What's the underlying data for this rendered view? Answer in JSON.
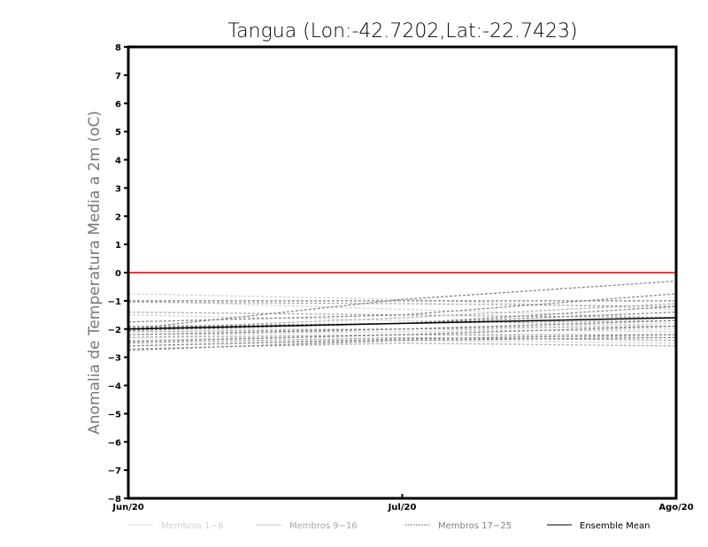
{
  "chart_data": {
    "type": "line",
    "title": "Tangua (Lon:-42.7202,Lat:-22.7423)",
    "ylabel": "Anomalia de Temperatura Media a 2m (oC)",
    "xlabel": "",
    "categories": [
      "Jun/20",
      "Jul/20",
      "Ago/20"
    ],
    "ylim": [
      -8,
      8
    ],
    "yticks": [
      "8",
      "7",
      "6",
      "5",
      "4",
      "3",
      "2",
      "1",
      "0",
      "-1",
      "-2",
      "-3",
      "-4",
      "-5",
      "-6",
      "-7",
      "-8"
    ],
    "reference_line": {
      "y": 0,
      "color": "#ff3333"
    },
    "series": [
      {
        "name": "Membros 1-8",
        "color": "#d0d0d0",
        "members": [
          [
            -0.75,
            -0.95,
            -1.3
          ],
          [
            -1.0,
            -1.3,
            -1.6
          ],
          [
            -1.5,
            -1.7,
            -1.9
          ],
          [
            -2.0,
            -2.0,
            -2.1
          ],
          [
            -2.2,
            -2.1,
            -2.0
          ],
          [
            -2.4,
            -2.2,
            -2.3
          ],
          [
            -2.6,
            -2.4,
            -2.5
          ],
          [
            -2.3,
            -2.0,
            -1.8
          ]
        ]
      },
      {
        "name": "Membros 9-16",
        "color": "#a8a8a8",
        "members": [
          [
            -1.05,
            -1.1,
            -1.2
          ],
          [
            -1.4,
            -1.5,
            -1.6
          ],
          [
            -1.9,
            -1.8,
            -1.7
          ],
          [
            -2.1,
            -2.0,
            -1.9
          ],
          [
            -2.3,
            -2.2,
            -2.2
          ],
          [
            -2.5,
            -2.3,
            -2.4
          ],
          [
            -2.7,
            -2.5,
            -2.6
          ],
          [
            -2.0,
            -1.6,
            -1.1
          ]
        ]
      },
      {
        "name": "Membros 17-25",
        "color": "#808080",
        "members": [
          [
            -1.0,
            -1.0,
            -1.0
          ],
          [
            -1.75,
            -1.5,
            -0.75
          ],
          [
            -1.95,
            -1.8,
            -1.4
          ],
          [
            -2.05,
            -1.8,
            -1.2
          ],
          [
            -2.2,
            -2.0,
            -1.7
          ],
          [
            -2.45,
            -2.2,
            -1.9
          ],
          [
            -2.6,
            -2.35,
            -2.2
          ],
          [
            -2.75,
            -2.4,
            -2.3
          ],
          [
            -2.0,
            -0.95,
            -0.3
          ]
        ]
      },
      {
        "name": "Ensemble Mean",
        "color": "#000000",
        "values": [
          -2.0,
          -1.8,
          -1.6
        ]
      }
    ],
    "legend_position": "bottom"
  }
}
